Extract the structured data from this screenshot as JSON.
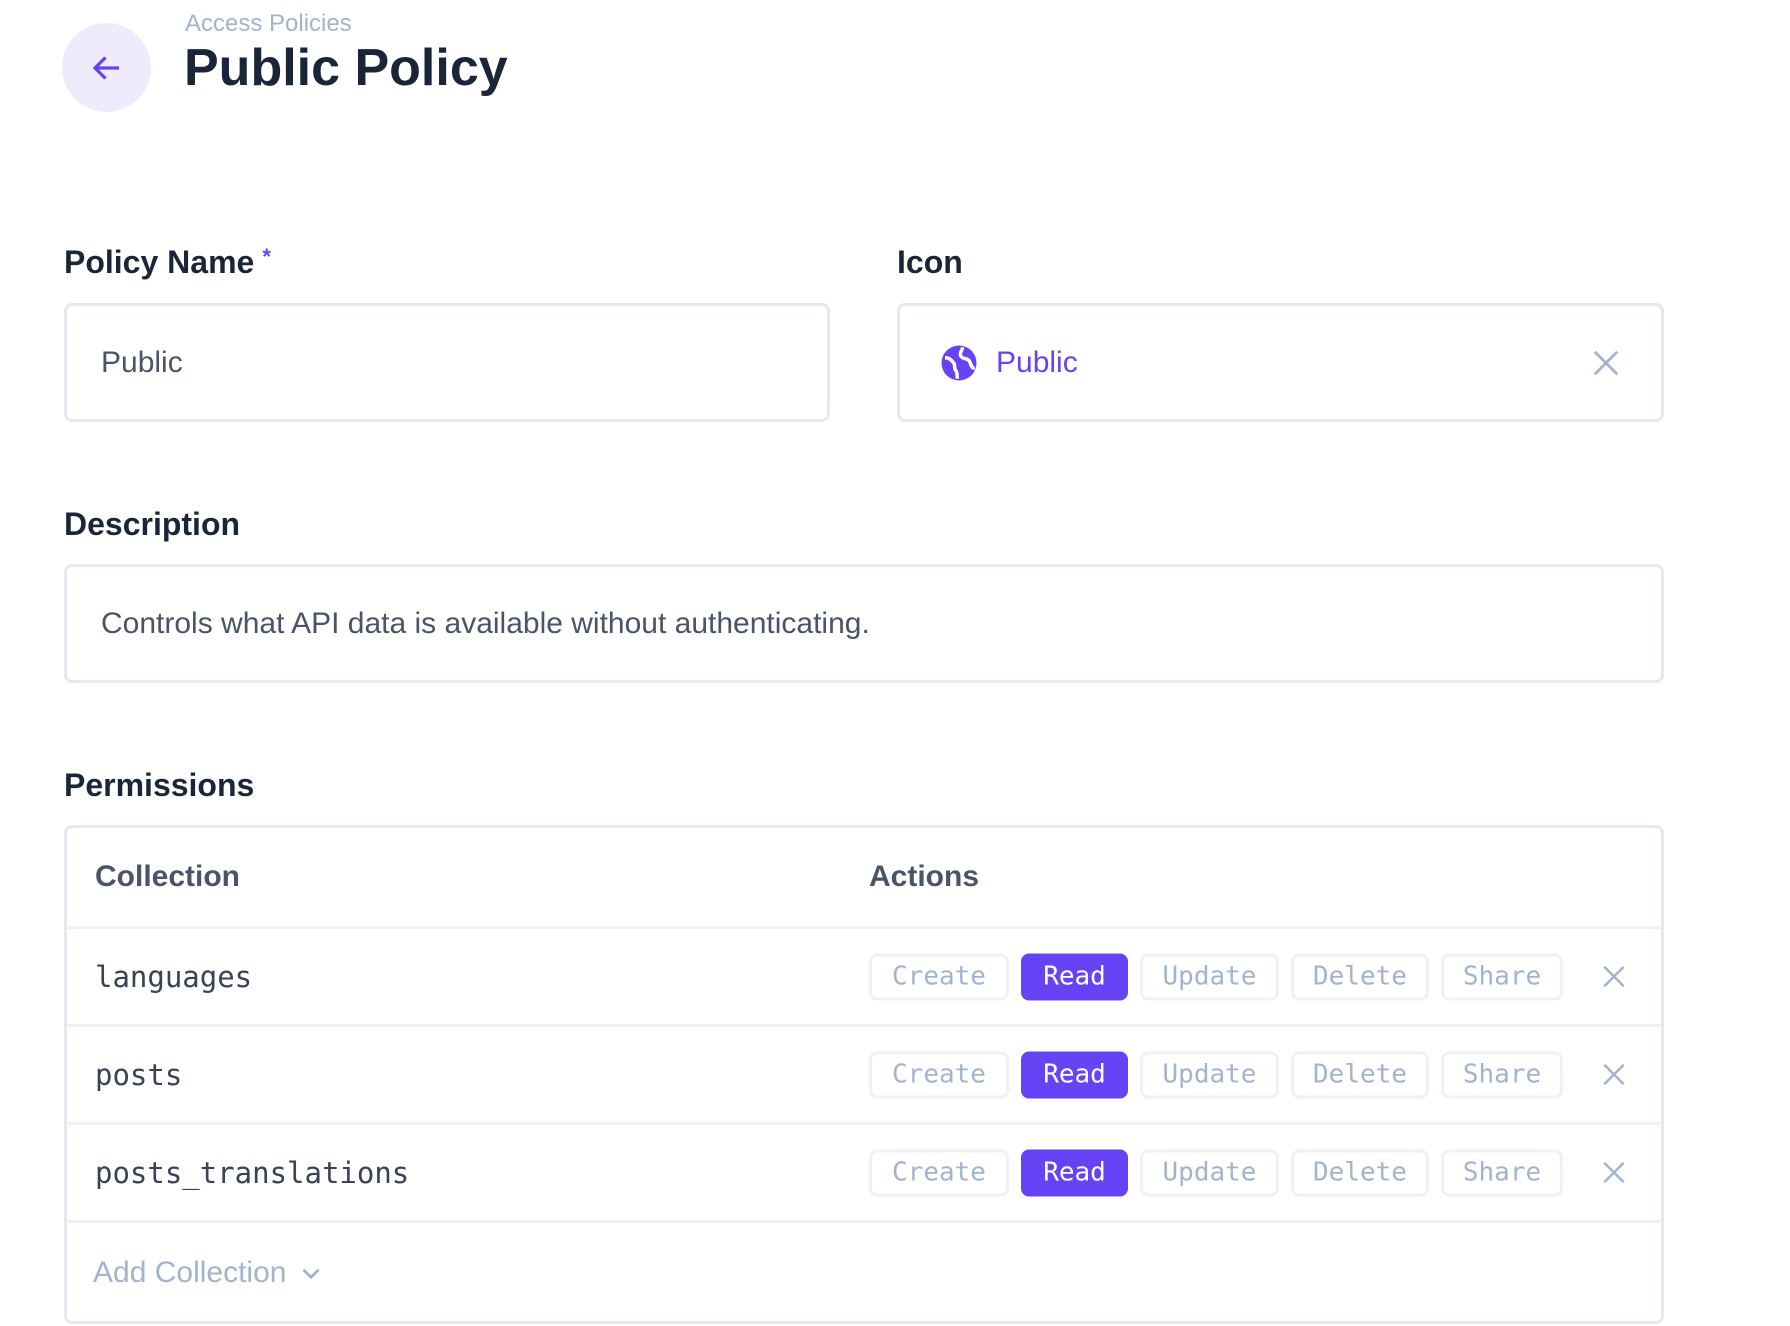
{
  "header": {
    "breadcrumb": "Access Policies",
    "title": "Public Policy"
  },
  "form": {
    "policy_name": {
      "label": "Policy Name",
      "required_mark": "*",
      "value": "Public"
    },
    "icon": {
      "label": "Icon",
      "value": "Public",
      "icon": "public-globe-icon"
    },
    "description": {
      "label": "Description",
      "value": "Controls what API data is available without authenticating."
    }
  },
  "permissions": {
    "label": "Permissions",
    "columns": [
      "Collection",
      "Actions"
    ],
    "rows": [
      {
        "collection": "languages",
        "actions": [
          "Create",
          "Read",
          "Update",
          "Delete",
          "Share"
        ],
        "enabled": [
          "Read"
        ]
      },
      {
        "collection": "posts",
        "actions": [
          "Create",
          "Read",
          "Update",
          "Delete",
          "Share"
        ],
        "enabled": [
          "Read"
        ]
      },
      {
        "collection": "posts_translations",
        "actions": [
          "Create",
          "Read",
          "Update",
          "Delete",
          "Share"
        ],
        "enabled": [
          "Read"
        ]
      }
    ],
    "add_label": "Add Collection"
  },
  "colors": {
    "accent": "#6644f5",
    "muted": "#a2b4cc",
    "border": "#e4e9f1"
  }
}
